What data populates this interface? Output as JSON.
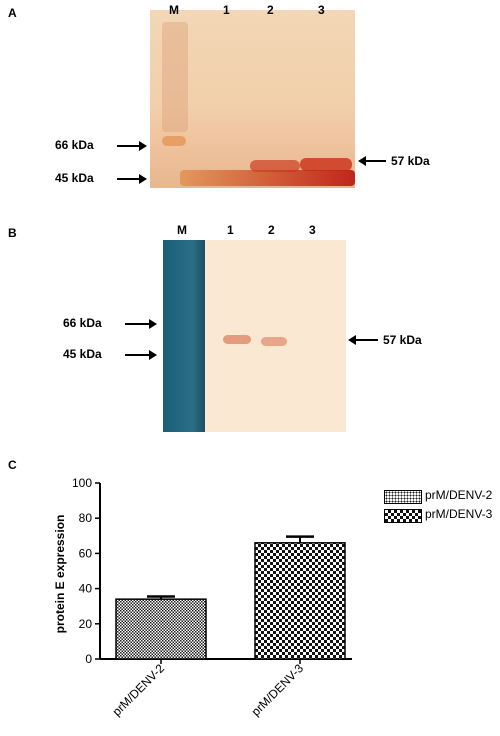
{
  "panel_a": {
    "letter": "A",
    "lanes": [
      "M",
      "1",
      "2",
      "3"
    ],
    "marker_66": "66 kDa",
    "marker_45": "45 kDa",
    "band_label": "57 kDa"
  },
  "panel_b": {
    "letter": "B",
    "lanes": [
      "M",
      "1",
      "2",
      "3"
    ],
    "marker_66": "66 kDa",
    "marker_45": "45 kDa",
    "band_label": "57 kDa"
  },
  "panel_c": {
    "letter": "C"
  },
  "chart_data": {
    "type": "bar",
    "categories": [
      "prM/DENV-2",
      "prM/DENV-3"
    ],
    "values": [
      34,
      66
    ],
    "errors": [
      1.5,
      3.5
    ],
    "ylabel": "protein E expression",
    "ylim": [
      0,
      100
    ],
    "yticks": [
      0,
      20,
      40,
      60,
      80,
      100
    ],
    "legend": [
      "prM/DENV-2",
      "prM/DENV-3"
    ],
    "legend_position": "top-right",
    "grid": false
  }
}
